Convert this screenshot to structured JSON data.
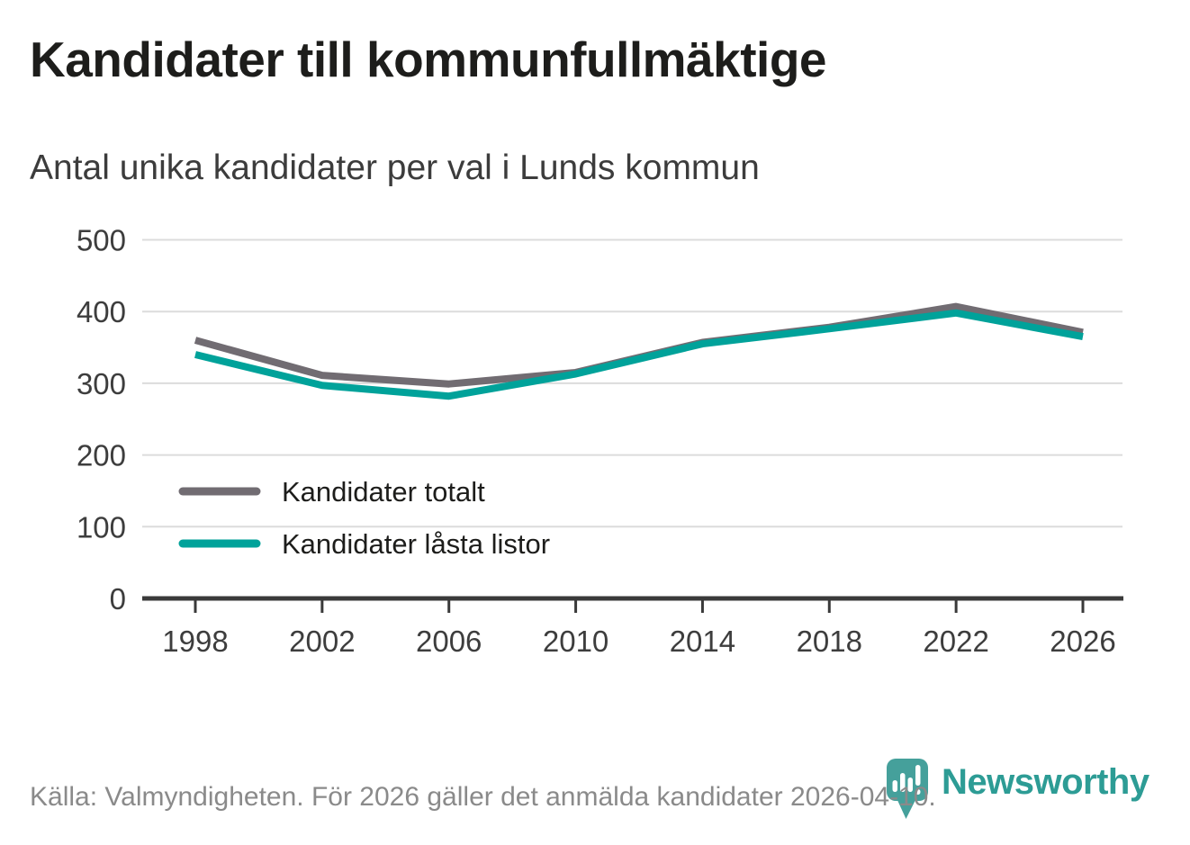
{
  "header": {
    "title": "Kandidater till kommunfullmäktige",
    "subtitle": "Antal unika kandidater per val i Lunds kommun"
  },
  "chart_data": {
    "type": "line",
    "title": "Kandidater till kommunfullmäktige",
    "subtitle": "Antal unika kandidater per val i Lunds kommun",
    "x": [
      1998,
      2002,
      2006,
      2010,
      2014,
      2018,
      2022,
      2026
    ],
    "series": [
      {
        "name": "Kandidater totalt",
        "color": "#716C72",
        "values": [
          360,
          311,
          299,
          315,
          357,
          378,
          407,
          371
        ]
      },
      {
        "name": "Kandidater låsta listor",
        "color": "#00A29A",
        "values": [
          340,
          297,
          282,
          313,
          355,
          376,
          398,
          365
        ]
      }
    ],
    "xlabel": "",
    "ylabel": "",
    "ylim": [
      0,
      500
    ],
    "ytick_step": 100,
    "yticks": [
      0,
      100,
      200,
      300,
      400,
      500
    ],
    "grid": "horizontal-only",
    "legend_position": "inside-left-lower"
  },
  "footer": {
    "source_text": "Källa: Valmyndigheten. För 2026 gäller det anmälda kandidater 2026-04-10."
  },
  "branding": {
    "logo_text": "Newsworthy",
    "logo_color": "#2D9C95",
    "pin_color": "#45A09B",
    "pin_icon": "bar-chart-map-pin-icon"
  }
}
